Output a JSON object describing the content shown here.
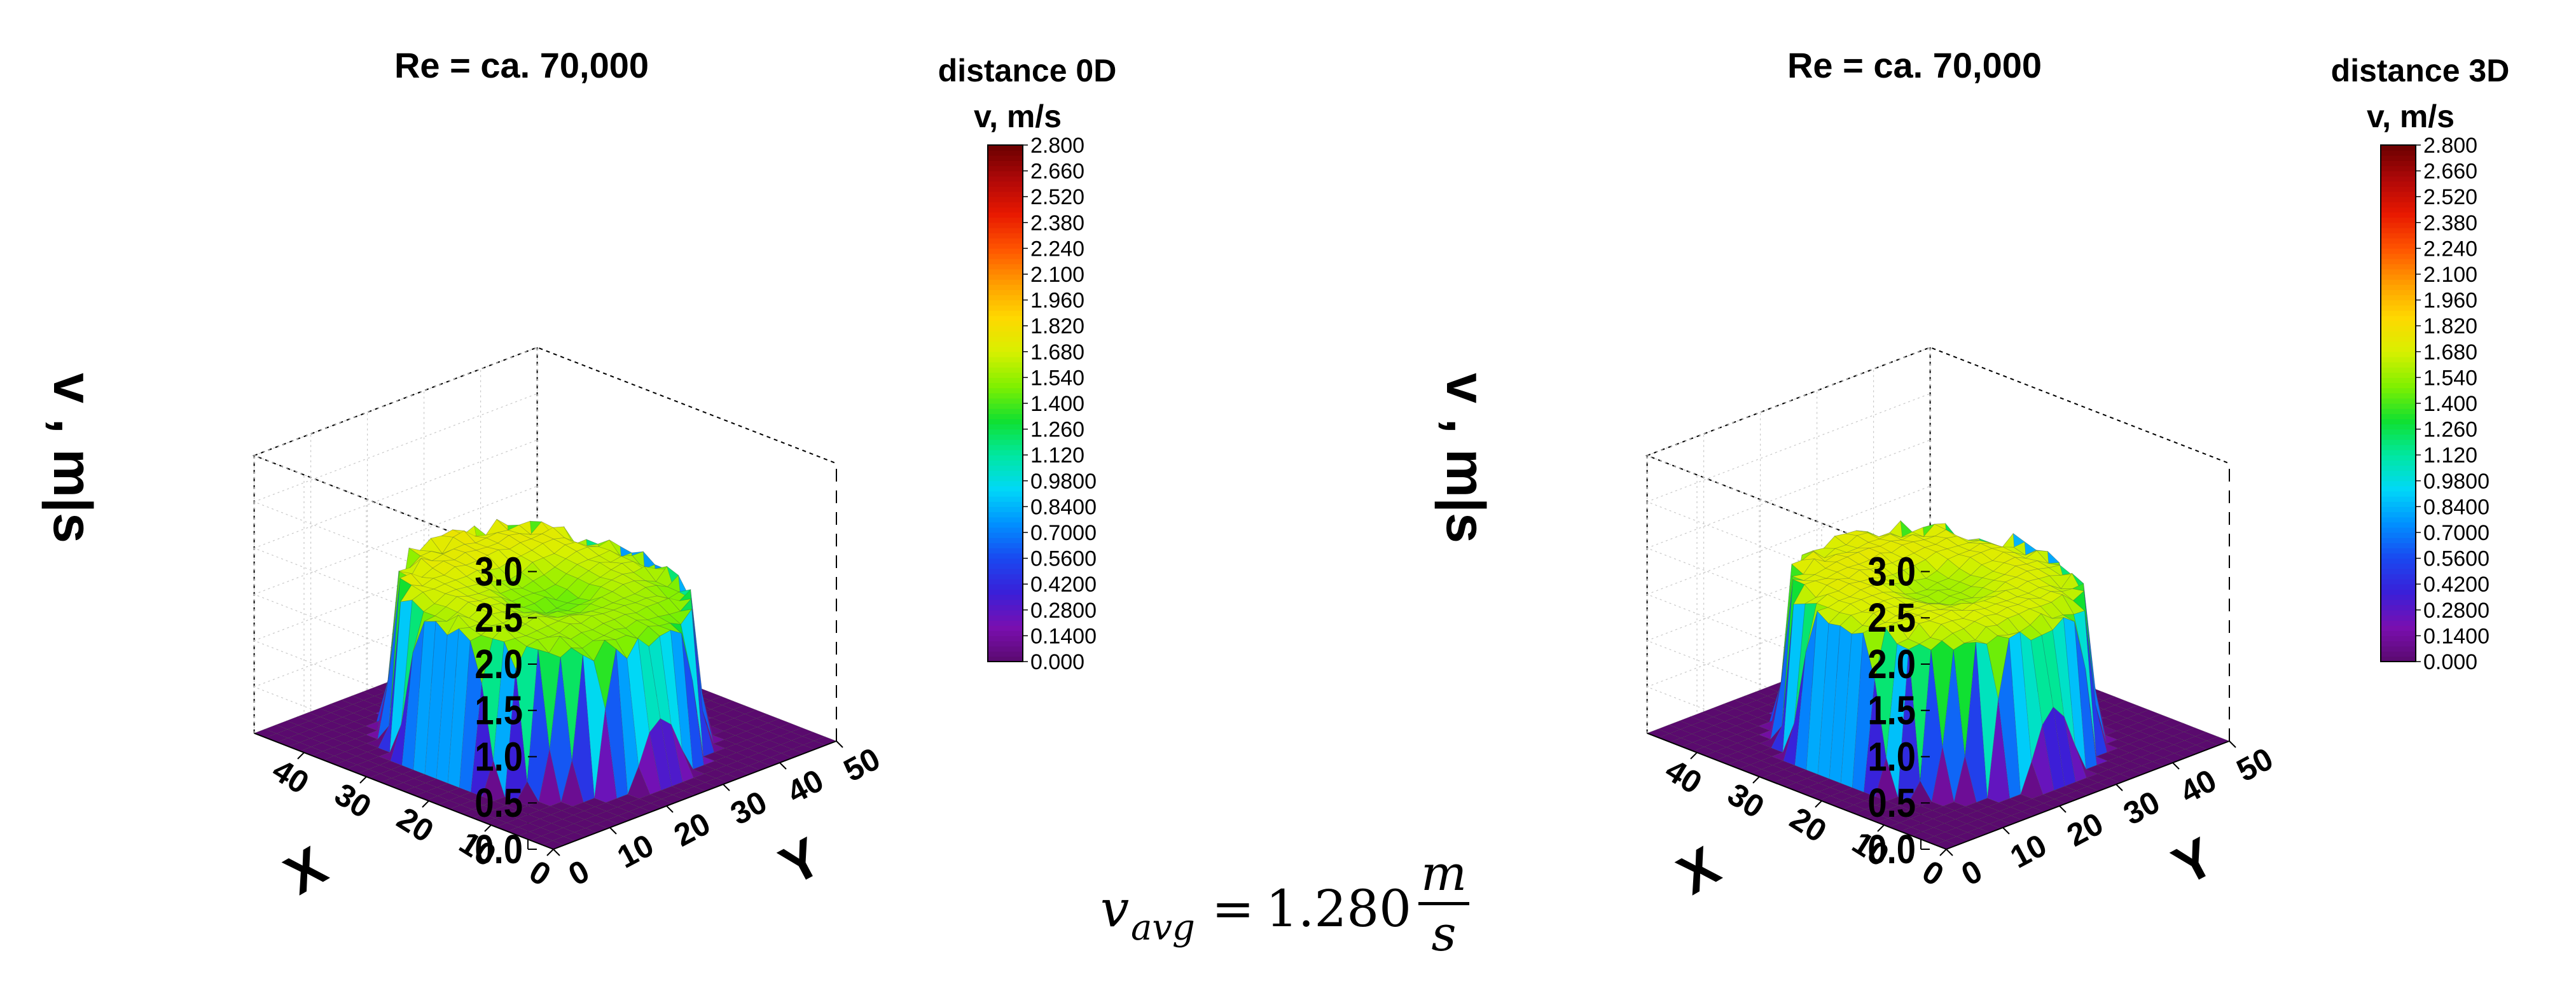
{
  "chart_data": [
    {
      "type": "surface3d",
      "title": "Re = ca. 70,000",
      "colorbar_title": "distance 0D",
      "colorbar_label": "v, m/s",
      "zlabel": "v , m|s",
      "xlabel": "X",
      "ylabel": "Y",
      "zlim": [
        0,
        3.0
      ],
      "zticks": [
        "0.0",
        "0.5",
        "1.0",
        "1.5",
        "2.0",
        "2.5",
        "3.0"
      ],
      "xticks": [
        "0",
        "10",
        "20",
        "30",
        "40"
      ],
      "yticks": [
        "0",
        "10",
        "20",
        "30",
        "40",
        "50"
      ],
      "colorbar_ticks": [
        "0.000",
        "0.1400",
        "0.2800",
        "0.4200",
        "0.5600",
        "0.7000",
        "0.8400",
        "0.9800",
        "1.120",
        "1.260",
        "1.400",
        "1.540",
        "1.680",
        "1.820",
        "1.960",
        "2.100",
        "2.240",
        "2.380",
        "2.520",
        "2.660",
        "2.800"
      ],
      "flat_top": 1.72,
      "core_dip": 0.25,
      "tilt": 0.3,
      "edge_noise": 0.06
    },
    {
      "type": "surface3d",
      "title": "Re = ca. 70,000",
      "colorbar_title": "distance 3D",
      "colorbar_label": "v, m/s",
      "zlabel": "v , m|s",
      "xlabel": "X",
      "ylabel": "Y",
      "zlim": [
        0,
        3.0
      ],
      "zticks": [
        "0.0",
        "0.5",
        "1.0",
        "1.5",
        "2.0",
        "2.5",
        "3.0"
      ],
      "xticks": [
        "0",
        "10",
        "20",
        "30",
        "40"
      ],
      "yticks": [
        "0",
        "10",
        "20",
        "30",
        "40",
        "50"
      ],
      "colorbar_ticks": [
        "0.000",
        "0.1400",
        "0.2800",
        "0.4200",
        "0.5600",
        "0.7000",
        "0.8400",
        "0.9800",
        "1.120",
        "1.260",
        "1.400",
        "1.540",
        "1.680",
        "1.820",
        "1.960",
        "2.100",
        "2.240",
        "2.380",
        "2.520",
        "2.660",
        "2.800"
      ],
      "flat_top": 1.78,
      "core_dip": 0.22,
      "tilt": 0.1,
      "edge_noise": 0.05
    }
  ],
  "colorscale": [
    "#5a0a6e",
    "#7a0fb0",
    "#3a1fd8",
    "#1a48f0",
    "#0090ff",
    "#00d8f8",
    "#00e8a0",
    "#10e030",
    "#80f000",
    "#d8f000",
    "#ffd800",
    "#ff9c00",
    "#ff5400",
    "#e81800",
    "#b00808",
    "#6a0000"
  ],
  "formula": {
    "symbol": "v",
    "subscript": "avg",
    "equals": "=",
    "value": "1.280",
    "unit_numerator": "m",
    "unit_denominator": "s"
  }
}
